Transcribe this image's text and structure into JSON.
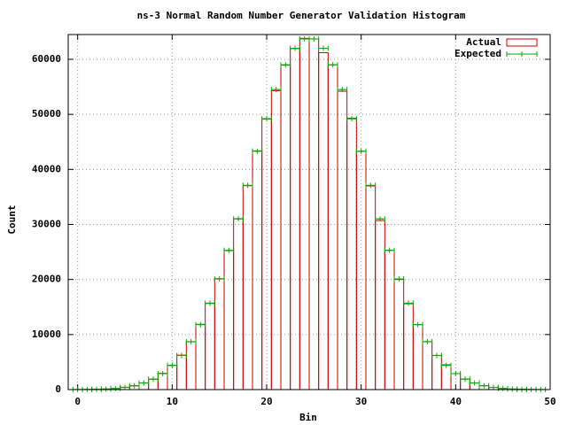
{
  "chart_data": {
    "type": "histogram",
    "title": "ns-3 Normal Random Number Generator Validation Histogram",
    "x_label": "Bin",
    "y_label": "Count",
    "x": [
      0,
      1,
      2,
      3,
      4,
      5,
      6,
      7,
      8,
      9,
      10,
      11,
      12,
      13,
      14,
      15,
      16,
      17,
      18,
      19,
      20,
      21,
      22,
      23,
      24,
      25,
      26,
      27,
      28,
      29,
      30,
      31,
      32,
      33,
      34,
      35,
      36,
      37,
      38,
      39,
      40,
      41,
      42,
      43,
      44,
      45,
      46,
      47,
      48,
      49
    ],
    "series": [
      {
        "name": "Actual",
        "color": "#cc0000",
        "values": [
          8,
          25,
          45,
          110,
          190,
          420,
          680,
          1220,
          1880,
          2950,
          4380,
          6250,
          8680,
          11850,
          15650,
          20150,
          25250,
          31050,
          37050,
          43350,
          49150,
          54300,
          58950,
          61950,
          63800,
          63700,
          61200,
          59000,
          54200,
          49300,
          43300,
          37000,
          30700,
          25300,
          20000,
          15600,
          11800,
          8700,
          6200,
          4500,
          2900,
          1900,
          1200,
          700,
          400,
          200,
          100,
          50,
          20,
          10
        ]
      },
      {
        "name": "Expected",
        "color": "#00aa00",
        "values": [
          10,
          20,
          50,
          100,
          200,
          400,
          700,
          1200,
          1900,
          2900,
          4400,
          6200,
          8700,
          11800,
          15700,
          20100,
          25300,
          31000,
          37100,
          43300,
          49200,
          54500,
          59000,
          62000,
          63700,
          63700,
          62000,
          59000,
          54500,
          49200,
          43300,
          37100,
          31000,
          25300,
          20100,
          15700,
          11800,
          8700,
          6200,
          4400,
          2900,
          1900,
          1200,
          700,
          400,
          200,
          100,
          50,
          20,
          10
        ]
      }
    ],
    "xlim": [
      -1,
      50
    ],
    "ylim": [
      0,
      64500
    ],
    "xticks": [
      0,
      10,
      20,
      30,
      40,
      50
    ],
    "yticks": [
      0,
      10000,
      20000,
      30000,
      40000,
      50000,
      60000
    ],
    "grid": true,
    "legend": "top-right"
  }
}
